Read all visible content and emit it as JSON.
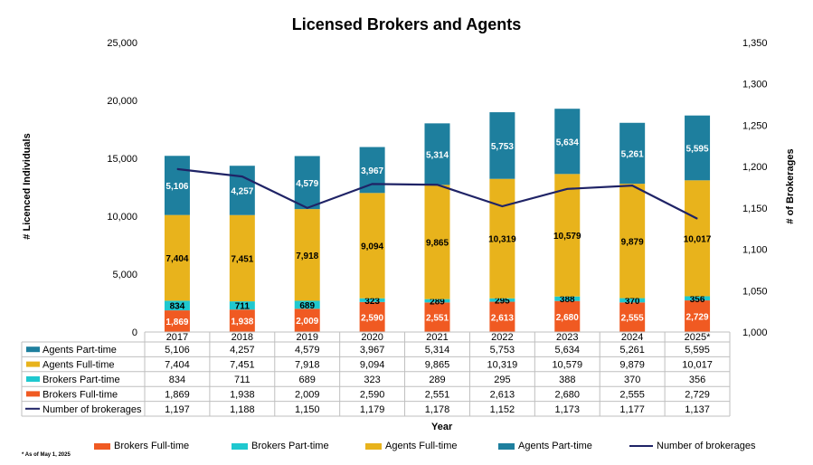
{
  "colors": {
    "brokers_ft": "#f05a22",
    "brokers_pt": "#1fc8cf",
    "agents_ft": "#e8b31c",
    "agents_pt": "#1e7f9e",
    "line": "#1f2366",
    "grid": "#d9d9d9"
  },
  "chart_data": {
    "type": "bar",
    "title": "Licensed Brokers and Agents",
    "xlabel": "Year",
    "ylabel": "# Licenced Individuals",
    "y2label": "# of Brokerages",
    "ylim": [
      0,
      25000
    ],
    "y2lim": [
      1000,
      1350
    ],
    "yticks": [
      "0",
      "5,000",
      "10,000",
      "15,000",
      "20,000",
      "25,000"
    ],
    "y2ticks": [
      "1,000",
      "1,050",
      "1,100",
      "1,150",
      "1,200",
      "1,250",
      "1,300",
      "1,350"
    ],
    "categories": [
      "2017",
      "2018",
      "2019",
      "2020",
      "2021",
      "2022",
      "2023",
      "2024",
      "2025*"
    ],
    "series": [
      {
        "name": "Brokers Full-time",
        "kind": "bar",
        "values": [
          1869,
          1938,
          2009,
          2590,
          2551,
          2613,
          2680,
          2555,
          2729
        ],
        "labels": [
          "1,869",
          "1,938",
          "2,009",
          "2,590",
          "2,551",
          "2,613",
          "2,680",
          "2,555",
          "2,729"
        ]
      },
      {
        "name": "Brokers Part-time",
        "kind": "bar",
        "values": [
          834,
          711,
          689,
          323,
          289,
          295,
          388,
          370,
          356
        ],
        "labels": [
          "834",
          "711",
          "689",
          "323",
          "289",
          "295",
          "388",
          "370",
          "356"
        ]
      },
      {
        "name": "Agents Full-time",
        "kind": "bar",
        "values": [
          7404,
          7451,
          7918,
          9094,
          9865,
          10319,
          10579,
          9879,
          10017
        ],
        "labels": [
          "7,404",
          "7,451",
          "7,918",
          "9,094",
          "9,865",
          "10,319",
          "10,579",
          "9,879",
          "10,017"
        ]
      },
      {
        "name": "Agents Part-time",
        "kind": "bar",
        "values": [
          5106,
          4257,
          4579,
          3967,
          5314,
          5753,
          5634,
          5261,
          5595
        ],
        "labels": [
          "5,106",
          "4,257",
          "4,579",
          "3,967",
          "5,314",
          "5,753",
          "5,634",
          "5,261",
          "5,595"
        ]
      },
      {
        "name": "Number of brokerages",
        "kind": "line",
        "axis": "y2",
        "values": [
          1197,
          1188,
          1150,
          1179,
          1178,
          1152,
          1173,
          1177,
          1137
        ],
        "labels": [
          "1,197",
          "1,188",
          "1,150",
          "1,179",
          "1,178",
          "1,152",
          "1,173",
          "1,177",
          "1,137"
        ]
      }
    ],
    "table_row_order": [
      "Agents Part-time",
      "Agents Full-time",
      "Brokers Part-time",
      "Brokers Full-time",
      "Number of brokerages"
    ],
    "legend_order": [
      "Brokers Full-time",
      "Brokers Part-time",
      "Agents Full-time",
      "Agents Part-time",
      "Number of brokerages"
    ],
    "legend_position": "bottom"
  },
  "footnote": "* As of May 1, 2025"
}
